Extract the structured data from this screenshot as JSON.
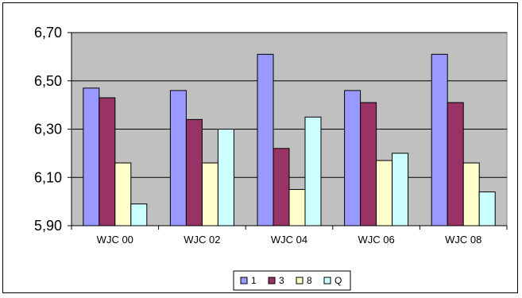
{
  "chart_data": {
    "type": "bar",
    "title": "",
    "xlabel": "",
    "ylabel": "",
    "categories": [
      "WJC 00",
      "WJC 02",
      "WJC 04",
      "WJC 06",
      "WJC 08"
    ],
    "ylim": [
      5.9,
      6.7
    ],
    "yticks": [
      "5,90",
      "6,10",
      "6,30",
      "6,50",
      "6,70"
    ],
    "ytick_values": [
      5.9,
      6.1,
      6.3,
      6.5,
      6.7
    ],
    "grid": "horizontal",
    "legend_position": "bottom",
    "plot_background": "#c0c0c0",
    "series": [
      {
        "name": "1",
        "color": "#9999ff",
        "values": [
          6.47,
          6.46,
          6.61,
          6.46,
          6.61
        ]
      },
      {
        "name": "3",
        "color": "#993366",
        "values": [
          6.43,
          6.34,
          6.22,
          6.41,
          6.41
        ]
      },
      {
        "name": "8",
        "color": "#ffffcc",
        "values": [
          6.16,
          6.16,
          6.05,
          6.17,
          6.16
        ]
      },
      {
        "name": "Q",
        "color": "#ccffff",
        "values": [
          5.99,
          6.3,
          6.35,
          6.2,
          6.04
        ]
      }
    ]
  }
}
